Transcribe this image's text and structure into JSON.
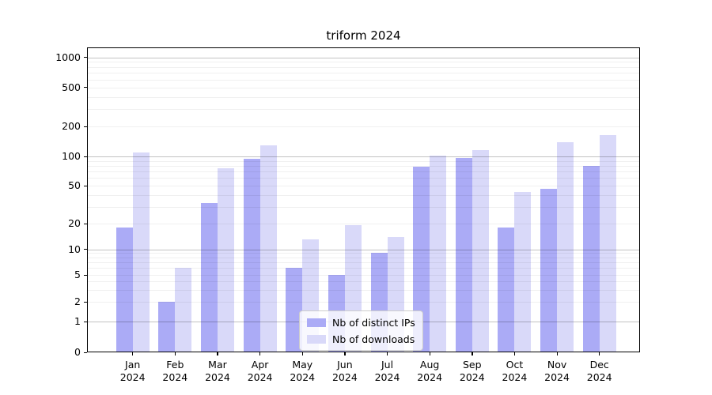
{
  "chart_data": {
    "type": "bar",
    "title": "triform 2024",
    "categories": [
      "Jan",
      "Feb",
      "Mar",
      "Apr",
      "May",
      "Jun",
      "Jul",
      "Aug",
      "Sep",
      "Oct",
      "Nov",
      "Dec"
    ],
    "year_label": "2024",
    "series": [
      {
        "name": "Nb of distinct IPs",
        "color": "#ababf6",
        "values": [
          18,
          2,
          33,
          95,
          6,
          5,
          9,
          78,
          97,
          18,
          46,
          80
        ]
      },
      {
        "name": "Nb of downloads",
        "color": "#d9d9f9",
        "values": [
          110,
          6,
          75,
          128,
          13,
          19,
          14,
          101,
          115,
          43,
          140,
          165
        ]
      }
    ],
    "xlabel": "",
    "ylabel": "",
    "y_scale": "symlog",
    "y_tick_labels": [
      "0",
      "1",
      "2",
      "5",
      "10",
      "20",
      "50",
      "100",
      "200",
      "500",
      "1000"
    ],
    "ylim": [
      0,
      1000
    ],
    "grid": true,
    "legend_position": "lower-center",
    "colors": {
      "background": "#ffffff",
      "axis": "#000000",
      "major_grid": "#c8c8c8",
      "minor_grid": "#eeeeee",
      "text": "#000000"
    }
  }
}
